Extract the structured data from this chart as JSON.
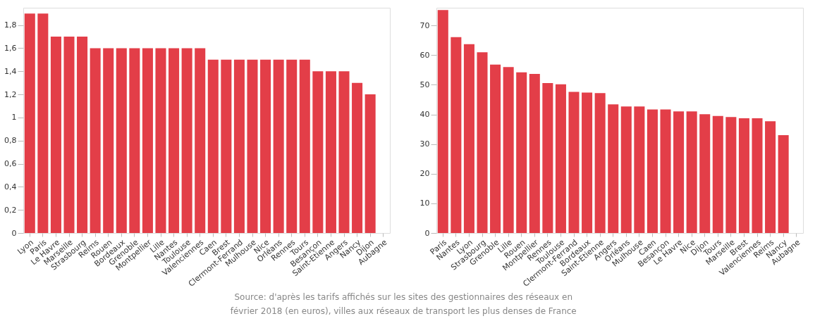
{
  "chart_data": [
    {
      "type": "bar",
      "categories": [
        "Lyon",
        "Paris",
        "Le Havre",
        "Marseille",
        "Strasbourg",
        "Reims",
        "Rouen",
        "Bordeaux",
        "Grenoble",
        "Montpellier",
        "Lille",
        "Nantes",
        "Toulouse",
        "Valenciennes",
        "Caen",
        "Brest",
        "Clermont-Ferrand",
        "Mulhouse",
        "Nice",
        "Orléans",
        "Rennes",
        "Tours",
        "Besançon",
        "Saint-Etienne",
        "Angers",
        "Nancy",
        "Dijon",
        "Aubagne"
      ],
      "values": [
        1.9,
        1.9,
        1.7,
        1.7,
        1.7,
        1.6,
        1.6,
        1.6,
        1.6,
        1.6,
        1.6,
        1.6,
        1.6,
        1.6,
        1.5,
        1.5,
        1.5,
        1.5,
        1.5,
        1.5,
        1.5,
        1.5,
        1.4,
        1.4,
        1.4,
        1.3,
        1.2,
        null
      ],
      "color": "#e33e48",
      "ylim": [
        0,
        1.95
      ],
      "yticks": [
        0,
        {
          "value": 0.2,
          "label": "0,2"
        },
        {
          "value": 0.4,
          "label": "0,4"
        },
        {
          "value": 0.6,
          "label": "0,6"
        },
        {
          "value": 0.8,
          "label": "0,8"
        },
        1,
        {
          "value": 1.2,
          "label": "1,2"
        },
        {
          "value": 1.4,
          "label": "1,4"
        },
        {
          "value": 1.6,
          "label": "1,6"
        },
        {
          "value": 1.8,
          "label": "1,8"
        }
      ],
      "grid": false,
      "annotations": [
        "Source: d'après les tarifs affichés sur les sites des gestionnaires des réseaux en février 2018 (en euros), villes aux réseaux de transport les plus denses de France"
      ]
    },
    {
      "type": "bar",
      "categories": [
        "Paris",
        "Nantes",
        "Lyon",
        "Strasbourg",
        "Grenoble",
        "Lille",
        "Rouen",
        "Montpellier",
        "Rennes",
        "Toulouse",
        "Clermont-Ferrand",
        "Bordeaux",
        "Saint-Etienne",
        "Angers",
        "Orléans",
        "Mulhouse",
        "Caen",
        "Besançon",
        "Le Havre",
        "Nice",
        "Dijon",
        "Tours",
        "Marseille",
        "Brest",
        "Valenciennes",
        "Reims",
        "Nancy",
        "Aubagne"
      ],
      "values": [
        75.2,
        66.1,
        63.7,
        61.0,
        56.8,
        56.0,
        54.2,
        53.7,
        50.6,
        50.2,
        47.6,
        47.4,
        47.2,
        43.4,
        42.7,
        42.7,
        41.7,
        41.7,
        41.0,
        41.0,
        40.1,
        39.5,
        39.1,
        38.7,
        38.7,
        37.7,
        33.0,
        null
      ],
      "color": "#e33e48",
      "ylim": [
        0,
        76
      ],
      "yticks": [
        0,
        10,
        20,
        30,
        40,
        50,
        60,
        70
      ],
      "grid": false
    }
  ]
}
